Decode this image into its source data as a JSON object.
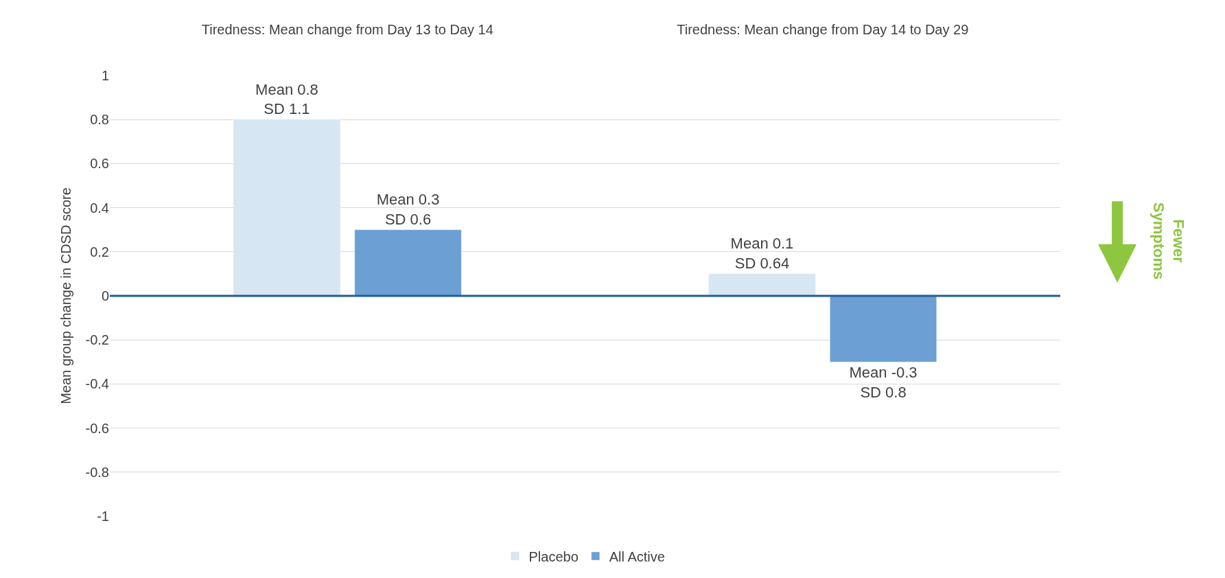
{
  "chart_data": {
    "type": "bar",
    "categories": [
      "Tiredness: Mean change from Day 13 to Day 14",
      "Tiredness: Mean change from Day 14 to Day 29"
    ],
    "series": [
      {
        "name": "Placebo",
        "color": "#d6e6f2",
        "values": [
          0.8,
          0.1
        ],
        "value_labels": [
          "Mean 0.8\nSD 1.1",
          "Mean 0.1\nSD 0.64"
        ]
      },
      {
        "name": "All Active",
        "color": "#6c9fd3",
        "values": [
          0.3,
          -0.3
        ],
        "value_labels": [
          "Mean 0.3\nSD 0.6",
          "Mean -0.3\nSD 0.8"
        ]
      }
    ],
    "ylabel": "Mean group change in CDSD score",
    "ylim": [
      -1,
      1
    ],
    "yticks": [
      -1,
      -0.8,
      -0.6,
      -0.4,
      -0.2,
      0,
      0.2,
      0.4,
      0.6,
      0.8,
      1
    ],
    "ref_lines": [
      {
        "axis": "y",
        "value": 0,
        "color": "#1f5f96"
      }
    ],
    "annotations": [
      "Fewer\nSymptoms"
    ],
    "grid": "y",
    "legend": "bottom"
  }
}
